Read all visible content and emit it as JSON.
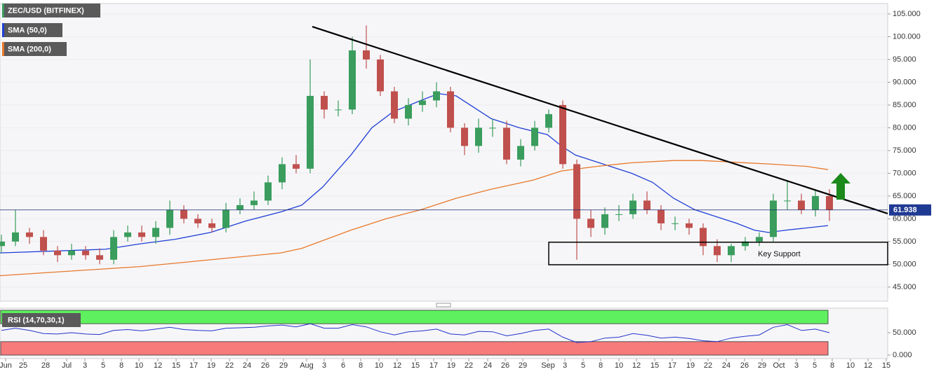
{
  "chart_data": [
    {
      "type": "candlestick",
      "title": "ZEC/USD (BITFINEX)",
      "x": [
        0,
        1,
        2,
        3,
        4,
        5,
        6,
        7,
        8,
        9,
        10,
        11,
        12,
        13,
        14,
        15,
        16,
        17,
        18,
        19,
        20,
        21,
        22,
        23,
        24,
        25,
        26,
        27,
        28,
        29,
        30,
        31,
        32,
        33,
        34,
        35,
        36,
        37,
        38,
        39,
        40,
        41,
        42,
        43,
        44,
        45,
        46,
        47,
        48,
        49,
        50,
        51,
        52,
        53,
        54,
        55,
        56,
        57,
        58,
        59
      ],
      "open": [
        54,
        55,
        57,
        56,
        53,
        52,
        53,
        52,
        51,
        56,
        57,
        56,
        58,
        62,
        60,
        59,
        58,
        62,
        63,
        64,
        68,
        72,
        71,
        87,
        84,
        84,
        97,
        95,
        88,
        82,
        85,
        86,
        88,
        80,
        76,
        80,
        80,
        73,
        76,
        80,
        85,
        72,
        60,
        58,
        61,
        61,
        64,
        62,
        59,
        59,
        58,
        54,
        52,
        54,
        55,
        56,
        64,
        64,
        62,
        65
      ],
      "high": [
        56.5,
        62,
        58,
        57.5,
        54,
        54.5,
        54,
        53.5,
        57.5,
        58.5,
        58.5,
        59.5,
        64,
        63,
        61,
        60,
        63.5,
        64.5,
        66,
        69.5,
        73.5,
        74,
        95,
        88,
        86,
        100,
        102.5,
        96,
        89,
        86.5,
        88,
        90,
        89,
        81,
        82,
        82,
        81.5,
        77.5,
        81.5,
        84,
        86,
        73,
        62,
        62.5,
        63,
        65.5,
        66,
        63,
        60.5,
        60,
        59,
        55.5,
        54.5,
        56,
        57,
        65.5,
        68.5,
        65.5,
        66.5,
        66.5
      ],
      "low": [
        52.5,
        54,
        54.5,
        52,
        50.5,
        51,
        51,
        50,
        50,
        55,
        55,
        54.5,
        56.5,
        59,
        58,
        57,
        57,
        61,
        62,
        63,
        66.5,
        70,
        70,
        82,
        82.5,
        83,
        93,
        87,
        81,
        80.5,
        83.5,
        84.5,
        79,
        74,
        74.5,
        78,
        72,
        71.5,
        75,
        79,
        71,
        51,
        56,
        56.5,
        59.5,
        60,
        61,
        57.5,
        57.5,
        56.5,
        52,
        50.5,
        50.5,
        53,
        54,
        55,
        62,
        61,
        60.5,
        59.5
      ],
      "close": [
        55,
        57,
        56,
        53,
        52,
        53,
        52,
        51,
        56,
        57,
        56,
        58,
        62,
        60,
        59,
        58,
        62,
        63,
        64,
        68,
        72,
        71,
        87,
        84,
        84,
        97,
        95,
        88,
        82,
        85,
        86,
        88,
        80,
        76,
        80,
        80,
        73,
        76,
        80,
        83,
        72,
        60,
        58,
        61,
        61,
        64,
        62,
        59,
        59,
        58,
        54,
        52,
        54,
        55,
        56,
        64,
        64,
        62,
        65,
        61.938
      ],
      "colors": {
        "up": "#3a9d5d",
        "down": "#c0504d",
        "last": "#1f3a93"
      },
      "xlim": [
        -0.1,
        63.15
      ],
      "ylim": [
        41.9,
        107.3
      ],
      "yticks": [
        {
          "value": 45,
          "label": "45.000"
        },
        {
          "value": 50,
          "label": "50.000"
        },
        {
          "value": 55,
          "label": "55.000"
        },
        {
          "value": 60,
          "label": "60.000"
        },
        {
          "value": 65,
          "label": "65.000"
        },
        {
          "value": 70,
          "label": "70.000"
        },
        {
          "value": 75,
          "label": "75.000"
        },
        {
          "value": 80,
          "label": "80.000"
        },
        {
          "value": 85,
          "label": "85.000"
        },
        {
          "value": 90,
          "label": "90.000"
        },
        {
          "value": 95,
          "label": "95.000"
        },
        {
          "value": 100,
          "label": "100.000"
        },
        {
          "value": 105,
          "label": "105.000"
        }
      ],
      "xticks": [
        {
          "value": 0.3,
          "label": "Jun"
        },
        {
          "value": 1.55,
          "label": "25"
        },
        {
          "value": 3.15,
          "label": "28"
        },
        {
          "value": 4.65,
          "label": "Jul"
        },
        {
          "value": 5.95,
          "label": "3"
        },
        {
          "value": 7.25,
          "label": "5"
        },
        {
          "value": 8.55,
          "label": "8"
        },
        {
          "value": 9.8,
          "label": "10"
        },
        {
          "value": 11.15,
          "label": "12"
        },
        {
          "value": 12.45,
          "label": "15"
        },
        {
          "value": 13.7,
          "label": "17"
        },
        {
          "value": 14.95,
          "label": "19"
        },
        {
          "value": 16.25,
          "label": "22"
        },
        {
          "value": 17.5,
          "label": "24"
        },
        {
          "value": 18.8,
          "label": "26"
        },
        {
          "value": 20.1,
          "label": "29"
        },
        {
          "value": 21.75,
          "label": "Aug"
        },
        {
          "value": 23.0,
          "label": "3"
        },
        {
          "value": 24.35,
          "label": "6"
        },
        {
          "value": 25.6,
          "label": "8"
        },
        {
          "value": 26.9,
          "label": "10"
        },
        {
          "value": 28.2,
          "label": "12"
        },
        {
          "value": 29.5,
          "label": "15"
        },
        {
          "value": 30.8,
          "label": "17"
        },
        {
          "value": 32.05,
          "label": "19"
        },
        {
          "value": 33.3,
          "label": "22"
        },
        {
          "value": 34.65,
          "label": "24"
        },
        {
          "value": 35.9,
          "label": "26"
        },
        {
          "value": 37.15,
          "label": "29"
        },
        {
          "value": 38.95,
          "label": "Sep"
        },
        {
          "value": 40.15,
          "label": "3"
        },
        {
          "value": 41.45,
          "label": "5"
        },
        {
          "value": 42.7,
          "label": "8"
        },
        {
          "value": 44.0,
          "label": "10"
        },
        {
          "value": 45.25,
          "label": "12"
        },
        {
          "value": 46.55,
          "label": "15"
        },
        {
          "value": 47.8,
          "label": "17"
        },
        {
          "value": 49.1,
          "label": "19"
        },
        {
          "value": 50.35,
          "label": "22"
        },
        {
          "value": 51.65,
          "label": "24"
        },
        {
          "value": 52.95,
          "label": "26"
        },
        {
          "value": 54.2,
          "label": "29"
        },
        {
          "value": 55.4,
          "label": "Oct"
        },
        {
          "value": 56.65,
          "label": "3"
        },
        {
          "value": 57.95,
          "label": "5"
        },
        {
          "value": 59.2,
          "label": "8"
        },
        {
          "value": 60.5,
          "label": "10"
        },
        {
          "value": 61.75,
          "label": "12"
        },
        {
          "value": 63.05,
          "label": "15"
        }
      ],
      "series": [
        {
          "name": "SMA (50,0)",
          "color": "#1f3fd6",
          "x": [
            -0.1,
            7.4,
            9.9,
            12.4,
            14.9,
            17.4,
            19.9,
            21.4,
            22.9,
            24.9,
            26.4,
            27.9,
            29.9,
            31.15,
            32.4,
            33.9,
            34.9,
            36.9,
            38.9,
            39.9,
            40.9,
            42.4,
            44.9,
            46.4,
            47.9,
            49.4,
            50.9,
            52.4,
            53.65,
            54.65,
            55.9,
            57.4,
            58.9
          ],
          "values": [
            52.5,
            53.3,
            54.5,
            55.5,
            57,
            59.5,
            61.5,
            63,
            67,
            74,
            80,
            83.5,
            86,
            87.5,
            87,
            84,
            82,
            80,
            78.5,
            76,
            74,
            72.5,
            70,
            68,
            64.5,
            62,
            60.5,
            59,
            57.5,
            57,
            57.5,
            58,
            58.5
          ]
        },
        {
          "name": "SMA (200,0)",
          "color": "#e8782a",
          "x": [
            -0.1,
            9.9,
            14.9,
            19.9,
            21.4,
            24.9,
            27.4,
            29.9,
            32.4,
            34.9,
            37.9,
            39.9,
            42.4,
            44.9,
            47.9,
            49.9,
            52.4,
            54.9,
            57.4,
            58.9
          ],
          "values": [
            47.5,
            49.5,
            51,
            52.5,
            53.5,
            57.5,
            60,
            62,
            64.5,
            66.5,
            68.5,
            70.5,
            71.5,
            72.3,
            72.8,
            72.8,
            72.4,
            72,
            71.5,
            70.8
          ]
        }
      ],
      "trendline": {
        "x": [
          22.15,
          63.15
        ],
        "values": [
          102.2,
          61.15
        ]
      },
      "annotations": [
        {
          "text": "Key Support",
          "x": [
            39,
            63.15
          ],
          "y": [
            49.9,
            54.85
          ]
        }
      ]
    },
    {
      "type": "line",
      "xlim": [
        -0.1,
        63.15
      ],
      "ylim": [
        -7.8,
        104.7
      ],
      "yticks": [
        {
          "value": 0,
          "label": "0.000"
        },
        {
          "value": 50,
          "label": "50.000"
        }
      ],
      "bands": [
        {
          "range": [
            70,
            100
          ],
          "color": "#5ef05e"
        },
        {
          "range": [
            0,
            30
          ],
          "color": "#f77b7b"
        }
      ],
      "series": [
        {
          "name": "RSI (14,70,30,1)",
          "color": "#2233cc",
          "x": [
            0,
            1,
            2,
            3,
            4,
            5,
            6,
            7,
            8,
            9,
            10,
            11,
            12,
            13,
            14,
            15,
            16,
            17,
            18,
            19,
            20,
            21,
            22,
            23,
            24,
            25,
            26,
            27,
            28,
            29,
            30,
            31,
            32,
            33,
            34,
            35,
            36,
            37,
            38,
            39,
            40,
            41,
            42,
            43,
            44,
            45,
            46,
            47,
            48,
            49,
            50,
            51,
            52,
            53,
            54,
            55,
            56,
            57,
            58,
            59
          ],
          "values": [
            55,
            60,
            55,
            48,
            47,
            50,
            47,
            46,
            55,
            57,
            54,
            58,
            62,
            57,
            55,
            54,
            60,
            61,
            62,
            65,
            67,
            63,
            70,
            60,
            60,
            68,
            63,
            52,
            45,
            52,
            54,
            58,
            47,
            45,
            53,
            52,
            43,
            48,
            55,
            58,
            40,
            28,
            30,
            38,
            40,
            48,
            44,
            38,
            40,
            37,
            32,
            30,
            38,
            42,
            45,
            62,
            68,
            55,
            58,
            50
          ]
        }
      ]
    }
  ]
}
